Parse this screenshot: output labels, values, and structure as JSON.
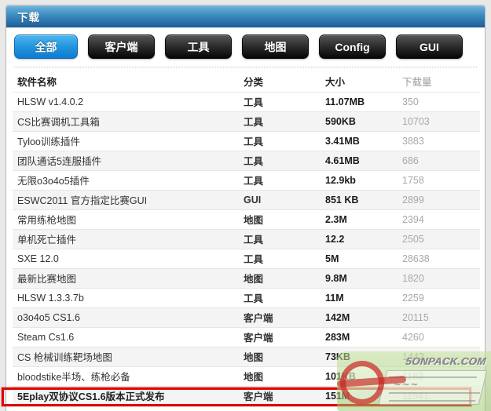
{
  "titlebar": {
    "title": "下载"
  },
  "tabs": {
    "items": [
      {
        "id": "all",
        "label": "全部",
        "active": true
      },
      {
        "id": "client",
        "label": "客户端",
        "active": false
      },
      {
        "id": "tool",
        "label": "工具",
        "active": false
      },
      {
        "id": "map",
        "label": "地图",
        "active": false
      },
      {
        "id": "config",
        "label": "Config",
        "active": false
      },
      {
        "id": "gui",
        "label": "GUI",
        "active": false
      }
    ]
  },
  "table": {
    "columns": [
      "软件名称",
      "分类",
      "大小",
      "下载量"
    ],
    "rows": [
      {
        "name": "HLSW v1.4.0.2",
        "category": "工具",
        "size": "11.07MB",
        "downloads": "350",
        "highlighted": false
      },
      {
        "name": "CS比赛调机工具箱",
        "category": "工具",
        "size": "590KB",
        "downloads": "10703",
        "highlighted": false
      },
      {
        "name": "Tyloo训练插件",
        "category": "工具",
        "size": "3.41MB",
        "downloads": "3883",
        "highlighted": false
      },
      {
        "name": "团队通话5连服插件",
        "category": "工具",
        "size": "4.61MB",
        "downloads": "686",
        "highlighted": false
      },
      {
        "name": "无限o3o4o5插件",
        "category": "工具",
        "size": "12.9kb",
        "downloads": "1758",
        "highlighted": false
      },
      {
        "name": "ESWC2011 官方指定比赛GUI",
        "category": "GUI",
        "size": "851 KB",
        "downloads": "2899",
        "highlighted": false
      },
      {
        "name": "常用练枪地图",
        "category": "地图",
        "size": "2.3M",
        "downloads": "2394",
        "highlighted": false
      },
      {
        "name": "单机死亡插件",
        "category": "工具",
        "size": "12.2",
        "downloads": "2505",
        "highlighted": false
      },
      {
        "name": "SXE 12.0",
        "category": "工具",
        "size": "5M",
        "downloads": "28638",
        "highlighted": false
      },
      {
        "name": "最新比赛地图",
        "category": "地图",
        "size": "9.8M",
        "downloads": "1820",
        "highlighted": false
      },
      {
        "name": "HLSW 1.3.3.7b",
        "category": "工具",
        "size": "11M",
        "downloads": "2259",
        "highlighted": false
      },
      {
        "name": "o3o4o5 CS1.6",
        "category": "客户端",
        "size": "142M",
        "downloads": "20115",
        "highlighted": false
      },
      {
        "name": "Steam Cs1.6",
        "category": "客户端",
        "size": "283M",
        "downloads": "4260",
        "highlighted": false
      },
      {
        "name": "CS 枪械训练靶场地图",
        "category": "地图",
        "size": "73KB",
        "downloads": "1442",
        "highlighted": false
      },
      {
        "name": "bloodstike半场、练枪必备",
        "category": "地图",
        "size": "101KB",
        "downloads": "1183",
        "highlighted": false
      },
      {
        "name": "5Eplay双协议CS1.6版本正式发布",
        "category": "客户端",
        "size": "151M",
        "downloads": "11541",
        "highlighted": true
      }
    ]
  },
  "watermark": {
    "site_text": "5ONPACK.COM"
  },
  "colors": {
    "accent_blue": "#0d7bd0",
    "titlebar_top": "#6fb4dd",
    "titlebar_bottom": "#1d6099",
    "highlight_red": "#dd0800",
    "alt_row": "#f4f4f4",
    "downloads_gray": "#a8a8a8"
  }
}
